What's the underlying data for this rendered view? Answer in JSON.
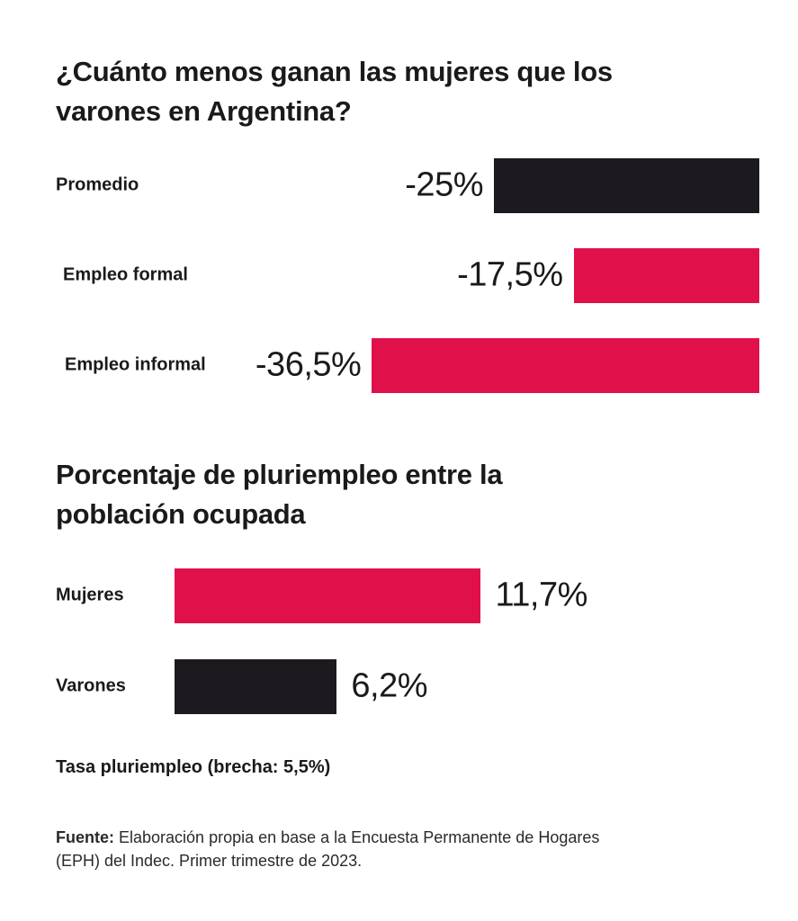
{
  "colors": {
    "dark": "#1d1a1f",
    "accent": "#e0104a"
  },
  "chart_data": [
    {
      "type": "bar",
      "orientation": "horizontal",
      "title": "¿Cuánto menos ganan las mujeres que los varones en Argentina?",
      "categories": [
        "Promedio",
        "Empleo formal",
        "Empleo informal"
      ],
      "values": [
        -25,
        -17.5,
        -36.5
      ],
      "labels": [
        "-25%",
        "-17,5%",
        "-36,5%"
      ],
      "bar_colors": [
        "dark",
        "accent",
        "accent"
      ],
      "unit": "%"
    },
    {
      "type": "bar",
      "orientation": "horizontal",
      "title": "Porcentaje de pluriempleo entre la población ocupada",
      "categories": [
        "Mujeres",
        "Varones"
      ],
      "values": [
        11.7,
        6.2
      ],
      "labels": [
        "11,7%",
        "6,2%"
      ],
      "bar_colors": [
        "accent",
        "dark"
      ],
      "unit": "%"
    }
  ],
  "note": "Tasa pluriempleo (brecha: 5,5%)",
  "source": {
    "label": "Fuente:",
    "text": " Elaboración propia en base a la Encuesta Permanente de Hogares (EPH) del Indec. Primer trimestre de 2023."
  }
}
